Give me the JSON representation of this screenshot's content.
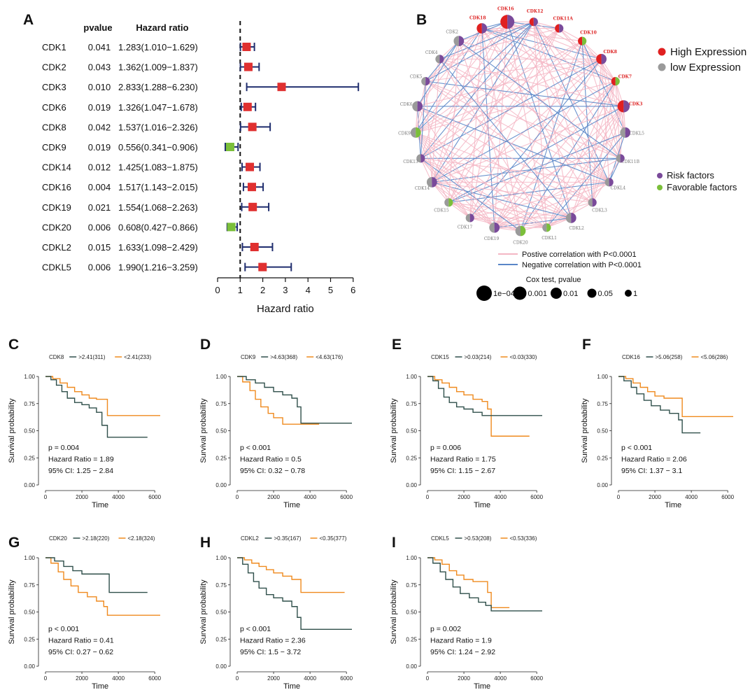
{
  "colors": {
    "forest_line": "#1f2d6e",
    "risk_marker": "#e03030",
    "favor_marker": "#7bbf3a",
    "km_high": "#2f4f4a",
    "km_low": "#ef8a1e",
    "pos_corr": "#f4b6c4",
    "neg_corr": "#5a86c8",
    "node_gray": "#9a9a9a",
    "node_purple": "#7a4a9a",
    "node_red": "#e02020",
    "node_green": "#7bbf3a"
  },
  "chart_data": [
    {
      "panel": "A",
      "type": "forest",
      "header_pvalue": "pvalue",
      "header_hr": "Hazard ratio",
      "xlabel": "Hazard ratio",
      "xlim": [
        0,
        6
      ],
      "xticks": [
        "0",
        "1",
        "2",
        "3",
        "4",
        "5",
        "6"
      ],
      "reference": 1,
      "rows": [
        {
          "gene": "CDK1",
          "pvalue": "0.041",
          "hr_text": "1.283(1.010−1.629)",
          "hr": 1.283,
          "lo": 1.01,
          "hi": 1.629,
          "kind": "risk"
        },
        {
          "gene": "CDK2",
          "pvalue": "0.043",
          "hr_text": "1.362(1.009−1.837)",
          "hr": 1.362,
          "lo": 1.009,
          "hi": 1.837,
          "kind": "risk"
        },
        {
          "gene": "CDK3",
          "pvalue": "0.010",
          "hr_text": "2.833(1.288−6.230)",
          "hr": 2.833,
          "lo": 1.288,
          "hi": 6.23,
          "kind": "risk"
        },
        {
          "gene": "CDK6",
          "pvalue": "0.019",
          "hr_text": "1.326(1.047−1.678)",
          "hr": 1.326,
          "lo": 1.047,
          "hi": 1.678,
          "kind": "risk"
        },
        {
          "gene": "CDK8",
          "pvalue": "0.042",
          "hr_text": "1.537(1.016−2.326)",
          "hr": 1.537,
          "lo": 1.016,
          "hi": 2.326,
          "kind": "risk"
        },
        {
          "gene": "CDK9",
          "pvalue": "0.019",
          "hr_text": "0.556(0.341−0.906)",
          "hr": 0.556,
          "lo": 0.341,
          "hi": 0.906,
          "kind": "favorable"
        },
        {
          "gene": "CDK14",
          "pvalue": "0.012",
          "hr_text": "1.425(1.083−1.875)",
          "hr": 1.425,
          "lo": 1.083,
          "hi": 1.875,
          "kind": "risk"
        },
        {
          "gene": "CDK16",
          "pvalue": "0.004",
          "hr_text": "1.517(1.143−2.015)",
          "hr": 1.517,
          "lo": 1.143,
          "hi": 2.015,
          "kind": "risk"
        },
        {
          "gene": "CDK19",
          "pvalue": "0.021",
          "hr_text": "1.554(1.068−2.263)",
          "hr": 1.554,
          "lo": 1.068,
          "hi": 2.263,
          "kind": "risk"
        },
        {
          "gene": "CDK20",
          "pvalue": "0.006",
          "hr_text": "0.608(0.427−0.866)",
          "hr": 0.608,
          "lo": 0.427,
          "hi": 0.866,
          "kind": "favorable"
        },
        {
          "gene": "CDKL2",
          "pvalue": "0.015",
          "hr_text": "1.633(1.098−2.429)",
          "hr": 1.633,
          "lo": 1.098,
          "hi": 2.429,
          "kind": "risk"
        },
        {
          "gene": "CDKL5",
          "pvalue": "0.006",
          "hr_text": "1.990(1.216−3.259)",
          "hr": 1.99,
          "lo": 1.216,
          "hi": 3.259,
          "kind": "risk"
        }
      ]
    },
    {
      "panel": "B",
      "type": "network",
      "legend_expression": [
        "High Expression",
        "low Expression"
      ],
      "legend_factors": [
        "Risk factors",
        "Favorable factors"
      ],
      "legend_lines": [
        "Postive correlation with P<0.0001",
        "Negative correlation with P<0.0001"
      ],
      "legend_size_title": "Cox test, pvalue",
      "legend_sizes": [
        "1e−04",
        "0.001",
        "0.01",
        "0.05",
        "1"
      ],
      "nodes": [
        {
          "id": "CDK18",
          "expr": "high",
          "factor": "risk",
          "size": 3
        },
        {
          "id": "CDK16",
          "expr": "high",
          "factor": "risk",
          "size": 5
        },
        {
          "id": "CDK12",
          "expr": "high",
          "factor": "risk",
          "size": 2
        },
        {
          "id": "CDK11A",
          "expr": "high",
          "factor": "risk",
          "size": 2
        },
        {
          "id": "CDK10",
          "expr": "high",
          "factor": "favorable",
          "size": 2
        },
        {
          "id": "CDK8",
          "expr": "high",
          "factor": "risk",
          "size": 3
        },
        {
          "id": "CDK7",
          "expr": "high",
          "factor": "favorable",
          "size": 2
        },
        {
          "id": "CDK3",
          "expr": "high",
          "factor": "risk",
          "size": 4
        },
        {
          "id": "CDKL5",
          "expr": "low",
          "factor": "risk",
          "size": 3
        },
        {
          "id": "CDK11B",
          "expr": "low",
          "factor": "risk",
          "size": 2
        },
        {
          "id": "CDKL4",
          "expr": "low",
          "factor": "risk",
          "size": 2
        },
        {
          "id": "CDKL3",
          "expr": "low",
          "factor": "risk",
          "size": 2
        },
        {
          "id": "CDKL2",
          "expr": "low",
          "factor": "risk",
          "size": 3
        },
        {
          "id": "CDKL1",
          "expr": "low",
          "factor": "favorable",
          "size": 2
        },
        {
          "id": "CDK20",
          "expr": "low",
          "factor": "favorable",
          "size": 3
        },
        {
          "id": "CDK19",
          "expr": "low",
          "factor": "risk",
          "size": 3
        },
        {
          "id": "CDK17",
          "expr": "low",
          "factor": "risk",
          "size": 2
        },
        {
          "id": "CDK15",
          "expr": "low",
          "factor": "favorable",
          "size": 2
        },
        {
          "id": "CDK14",
          "expr": "low",
          "factor": "risk",
          "size": 3
        },
        {
          "id": "CDK13",
          "expr": "low",
          "factor": "risk",
          "size": 2
        },
        {
          "id": "CDK9",
          "expr": "low",
          "factor": "favorable",
          "size": 3
        },
        {
          "id": "CDK6",
          "expr": "low",
          "factor": "risk",
          "size": 3
        },
        {
          "id": "CDK5",
          "expr": "low",
          "factor": "risk",
          "size": 2
        },
        {
          "id": "CDK4",
          "expr": "low",
          "factor": "risk",
          "size": 2
        },
        {
          "id": "CDK2",
          "expr": "low",
          "factor": "risk",
          "size": 3
        }
      ]
    },
    {
      "panel": "C",
      "type": "km",
      "gene": "CDK8",
      "high_label": ">2.41(311)",
      "low_label": "<2.41(233)",
      "p": "p = 0.004",
      "hr": "Hazard Ratio = 1.89",
      "ci": "95% CI: 1.25 − 2.84",
      "ylabel": "Survival probability",
      "xlabel": "Time",
      "xticks": [
        "0",
        "2000",
        "4000",
        "6000"
      ],
      "yticks": [
        "0.00",
        "0.25",
        "0.50",
        "0.75",
        "1.00"
      ],
      "xlim": [
        0,
        6300
      ],
      "ylim": [
        0,
        1
      ],
      "high_curve": [
        [
          0,
          1
        ],
        [
          300,
          0.97
        ],
        [
          600,
          0.92
        ],
        [
          900,
          0.86
        ],
        [
          1200,
          0.8
        ],
        [
          1600,
          0.76
        ],
        [
          2000,
          0.74
        ],
        [
          2400,
          0.71
        ],
        [
          2800,
          0.67
        ],
        [
          3100,
          0.55
        ],
        [
          3400,
          0.44
        ],
        [
          5600,
          0.44
        ]
      ],
      "low_curve": [
        [
          0,
          1
        ],
        [
          400,
          0.98
        ],
        [
          800,
          0.94
        ],
        [
          1200,
          0.9
        ],
        [
          1600,
          0.86
        ],
        [
          2000,
          0.83
        ],
        [
          2400,
          0.8
        ],
        [
          2800,
          0.79
        ],
        [
          3300,
          0.79
        ],
        [
          3400,
          0.64
        ],
        [
          6300,
          0.64
        ]
      ]
    },
    {
      "panel": "D",
      "type": "km",
      "gene": "CDK9",
      "high_label": ">4.63(368)",
      "low_label": "<4.63(176)",
      "p": "p < 0.001",
      "hr": "Hazard Ratio = 0.5",
      "ci": "95% CI: 0.32 − 0.78",
      "ylabel": "Survival probability",
      "xlabel": "Time",
      "xticks": [
        "0",
        "2000",
        "4000",
        "6000"
      ],
      "yticks": [
        "0.00",
        "0.25",
        "0.50",
        "0.75",
        "1.00"
      ],
      "xlim": [
        0,
        6300
      ],
      "ylim": [
        0,
        1
      ],
      "high_curve": [
        [
          0,
          1
        ],
        [
          500,
          0.97
        ],
        [
          1000,
          0.94
        ],
        [
          1500,
          0.9
        ],
        [
          2000,
          0.86
        ],
        [
          2500,
          0.83
        ],
        [
          3000,
          0.8
        ],
        [
          3300,
          0.72
        ],
        [
          3500,
          0.57
        ],
        [
          6300,
          0.57
        ]
      ],
      "low_curve": [
        [
          0,
          1
        ],
        [
          300,
          0.95
        ],
        [
          700,
          0.87
        ],
        [
          1000,
          0.79
        ],
        [
          1300,
          0.72
        ],
        [
          1700,
          0.66
        ],
        [
          2000,
          0.62
        ],
        [
          2500,
          0.56
        ],
        [
          4500,
          0.56
        ]
      ]
    },
    {
      "panel": "E",
      "type": "km",
      "gene": "CDK15",
      "high_label": ">0.03(214)",
      "low_label": "<0.03(330)",
      "p": "p = 0.006",
      "hr": "Hazard Ratio = 1.75",
      "ci": "95% CI: 1.15 − 2.67",
      "ylabel": "Survival probability",
      "xlabel": "Time",
      "xticks": [
        "0",
        "2000",
        "4000",
        "6000"
      ],
      "yticks": [
        "0.00",
        "0.25",
        "0.50",
        "0.75",
        "1.00"
      ],
      "xlim": [
        0,
        6300
      ],
      "ylim": [
        0,
        1
      ],
      "high_curve": [
        [
          0,
          1
        ],
        [
          300,
          0.96
        ],
        [
          600,
          0.89
        ],
        [
          900,
          0.81
        ],
        [
          1200,
          0.76
        ],
        [
          1600,
          0.72
        ],
        [
          2000,
          0.7
        ],
        [
          2500,
          0.67
        ],
        [
          3000,
          0.64
        ],
        [
          6300,
          0.64
        ]
      ],
      "low_curve": [
        [
          0,
          1
        ],
        [
          400,
          0.97
        ],
        [
          800,
          0.94
        ],
        [
          1200,
          0.9
        ],
        [
          1600,
          0.86
        ],
        [
          2000,
          0.83
        ],
        [
          2500,
          0.79
        ],
        [
          3000,
          0.77
        ],
        [
          3300,
          0.7
        ],
        [
          3500,
          0.45
        ],
        [
          5600,
          0.45
        ]
      ]
    },
    {
      "panel": "F",
      "type": "km",
      "gene": "CDK16",
      "high_label": ">5.06(258)",
      "low_label": "<5.06(286)",
      "p": "p < 0.001",
      "hr": "Hazard Ratio = 2.06",
      "ci": "95% CI: 1.37 − 3.1",
      "ylabel": "Survival probability",
      "xlabel": "Time",
      "xticks": [
        "0",
        "2000",
        "4000",
        "6000"
      ],
      "yticks": [
        "0.00",
        "0.25",
        "0.50",
        "0.75",
        "1.00"
      ],
      "xlim": [
        0,
        6300
      ],
      "ylim": [
        0,
        1
      ],
      "high_curve": [
        [
          0,
          1
        ],
        [
          300,
          0.96
        ],
        [
          700,
          0.9
        ],
        [
          1000,
          0.84
        ],
        [
          1400,
          0.78
        ],
        [
          1800,
          0.73
        ],
        [
          2300,
          0.69
        ],
        [
          2800,
          0.66
        ],
        [
          3300,
          0.6
        ],
        [
          3500,
          0.48
        ],
        [
          4500,
          0.48
        ]
      ],
      "low_curve": [
        [
          0,
          1
        ],
        [
          400,
          0.98
        ],
        [
          800,
          0.94
        ],
        [
          1200,
          0.9
        ],
        [
          1600,
          0.86
        ],
        [
          2000,
          0.82
        ],
        [
          2500,
          0.8
        ],
        [
          3300,
          0.8
        ],
        [
          3500,
          0.63
        ],
        [
          6300,
          0.63
        ]
      ]
    },
    {
      "panel": "G",
      "type": "km",
      "gene": "CDK20",
      "high_label": ">2.18(220)",
      "low_label": "<2.18(324)",
      "p": "p < 0.001",
      "hr": "Hazard Ratio = 0.41",
      "ci": "95% CI: 0.27 − 0.62",
      "ylabel": "Survival probability",
      "xlabel": "Time",
      "xticks": [
        "0",
        "2000",
        "4000",
        "6000"
      ],
      "yticks": [
        "0.00",
        "0.25",
        "0.50",
        "0.75",
        "1.00"
      ],
      "xlim": [
        0,
        6300
      ],
      "ylim": [
        0,
        1
      ],
      "high_curve": [
        [
          0,
          1
        ],
        [
          500,
          0.97
        ],
        [
          1000,
          0.92
        ],
        [
          1500,
          0.88
        ],
        [
          2000,
          0.85
        ],
        [
          3300,
          0.85
        ],
        [
          3500,
          0.68
        ],
        [
          5600,
          0.68
        ]
      ],
      "low_curve": [
        [
          0,
          1
        ],
        [
          300,
          0.95
        ],
        [
          700,
          0.87
        ],
        [
          1000,
          0.8
        ],
        [
          1400,
          0.74
        ],
        [
          1800,
          0.68
        ],
        [
          2300,
          0.64
        ],
        [
          2800,
          0.6
        ],
        [
          3200,
          0.55
        ],
        [
          3400,
          0.47
        ],
        [
          6300,
          0.47
        ]
      ]
    },
    {
      "panel": "H",
      "type": "km",
      "gene": "CDKL2",
      "high_label": ">0.35(167)",
      "low_label": "<0.35(377)",
      "p": "p < 0.001",
      "hr": "Hazard Ratio = 2.36",
      "ci": "95% CI: 1.5 − 3.72",
      "ylabel": "Survival probability",
      "xlabel": "Time",
      "xticks": [
        "0",
        "2000",
        "4000",
        "6000"
      ],
      "yticks": [
        "0.00",
        "0.25",
        "0.50",
        "0.75",
        "1.00"
      ],
      "xlim": [
        0,
        6300
      ],
      "ylim": [
        0,
        1
      ],
      "high_curve": [
        [
          0,
          1
        ],
        [
          300,
          0.94
        ],
        [
          600,
          0.86
        ],
        [
          900,
          0.78
        ],
        [
          1200,
          0.72
        ],
        [
          1600,
          0.66
        ],
        [
          2000,
          0.63
        ],
        [
          2500,
          0.6
        ],
        [
          3000,
          0.55
        ],
        [
          3300,
          0.45
        ],
        [
          3500,
          0.34
        ],
        [
          6300,
          0.34
        ]
      ],
      "low_curve": [
        [
          0,
          1
        ],
        [
          400,
          0.98
        ],
        [
          800,
          0.95
        ],
        [
          1200,
          0.92
        ],
        [
          1600,
          0.89
        ],
        [
          2000,
          0.86
        ],
        [
          2500,
          0.83
        ],
        [
          3000,
          0.8
        ],
        [
          3500,
          0.68
        ],
        [
          5900,
          0.68
        ]
      ]
    },
    {
      "panel": "I",
      "type": "km",
      "gene": "CDKL5",
      "high_label": ">0.53(208)",
      "low_label": "<0.53(336)",
      "p": "p = 0.002",
      "hr": "Hazard Ratio = 1.9",
      "ci": "95% CI: 1.24 − 2.92",
      "ylabel": "Survival probability",
      "xlabel": "Time",
      "xticks": [
        "0",
        "2000",
        "4000",
        "6000"
      ],
      "yticks": [
        "0.00",
        "0.25",
        "0.50",
        "0.75",
        "1.00"
      ],
      "xlim": [
        0,
        6300
      ],
      "ylim": [
        0,
        1
      ],
      "high_curve": [
        [
          0,
          1
        ],
        [
          300,
          0.95
        ],
        [
          700,
          0.87
        ],
        [
          1000,
          0.8
        ],
        [
          1400,
          0.73
        ],
        [
          1800,
          0.67
        ],
        [
          2300,
          0.63
        ],
        [
          2800,
          0.59
        ],
        [
          3200,
          0.56
        ],
        [
          3500,
          0.51
        ],
        [
          6300,
          0.51
        ]
      ],
      "low_curve": [
        [
          0,
          1
        ],
        [
          400,
          0.98
        ],
        [
          800,
          0.94
        ],
        [
          1200,
          0.88
        ],
        [
          1600,
          0.84
        ],
        [
          2000,
          0.8
        ],
        [
          2500,
          0.78
        ],
        [
          3100,
          0.78
        ],
        [
          3300,
          0.68
        ],
        [
          3500,
          0.54
        ],
        [
          4500,
          0.54
        ]
      ]
    }
  ]
}
